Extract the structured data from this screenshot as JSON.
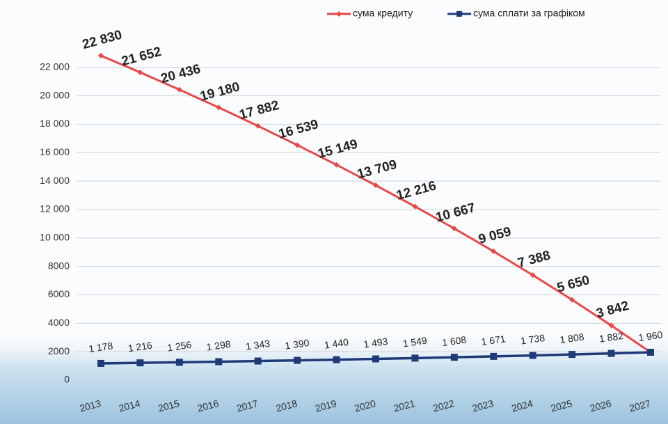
{
  "chart_data": {
    "type": "line",
    "categories": [
      "2013",
      "2014",
      "2015",
      "2016",
      "2017",
      "2018",
      "2019",
      "2020",
      "2021",
      "2022",
      "2023",
      "2024",
      "2025",
      "2026",
      "2027"
    ],
    "series": [
      {
        "name": "сума кредиту",
        "color": "#e8484a",
        "marker": "diamond",
        "values": [
          22830,
          21652,
          20436,
          19180,
          17882,
          16539,
          15149,
          13709,
          12216,
          10667,
          9059,
          7388,
          5650,
          3842,
          1960
        ],
        "value_labels": [
          "22 830",
          "21 652",
          "20 436",
          "19 180",
          "17 882",
          "16 539",
          "15 149",
          "13 709",
          "12 216",
          "10 667",
          "9 059",
          "7 388",
          "5 650",
          "3 842",
          null
        ]
      },
      {
        "name": "сума сплати за графіком",
        "color": "#1f3a78",
        "marker": "square",
        "values": [
          1178,
          1216,
          1256,
          1298,
          1343,
          1390,
          1440,
          1493,
          1549,
          1608,
          1671,
          1738,
          1808,
          1882,
          1960
        ],
        "value_labels": [
          "1 178",
          "1 216",
          "1 256",
          "1 298",
          "1 343",
          "1 390",
          "1 440",
          "1 493",
          "1 549",
          "1 608",
          "1 671",
          "1 738",
          "1 808",
          "1 882",
          "1 960"
        ]
      }
    ],
    "ylim": [
      0,
      24000
    ],
    "yticks": [
      0,
      {
        "value": 2000,
        "label": "2000"
      },
      {
        "value": 4000,
        "label": "4000"
      },
      {
        "value": 6000,
        "label": "6000"
      },
      {
        "value": 8000,
        "label": "8000"
      },
      {
        "value": 10000,
        "label": "10 000"
      },
      {
        "value": 12000,
        "label": "12 000"
      },
      {
        "value": 14000,
        "label": "14 000"
      },
      {
        "value": 16000,
        "label": "16 000"
      },
      {
        "value": 18000,
        "label": "18 000"
      },
      {
        "value": 20000,
        "label": "20 000"
      },
      {
        "value": 22000,
        "label": "22 000"
      }
    ],
    "grid": true,
    "legend": "top-right"
  }
}
